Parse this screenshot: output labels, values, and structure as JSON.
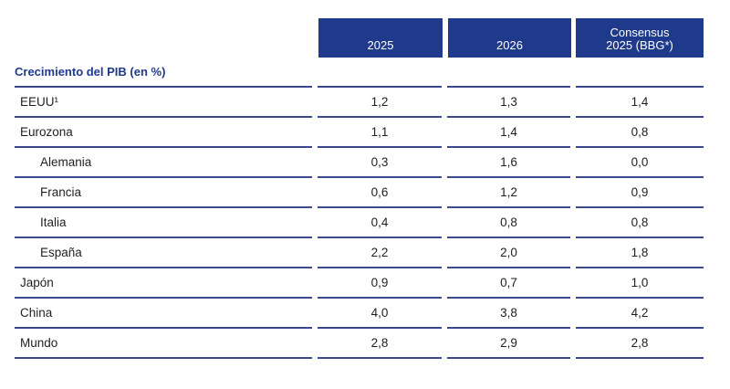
{
  "chart_data": {
    "type": "table",
    "title": "Crecimiento del PIB (en %)",
    "columns": [
      "2025",
      "2026",
      "Consensus\n2025 (BBG*)"
    ],
    "rows": [
      {
        "label": "EEUU¹",
        "indent": false,
        "values": [
          "1,2",
          "1,3",
          "1,4"
        ]
      },
      {
        "label": "Eurozona",
        "indent": false,
        "values": [
          "1,1",
          "1,4",
          "0,8"
        ]
      },
      {
        "label": "Alemania",
        "indent": true,
        "values": [
          "0,3",
          "1,6",
          "0,0"
        ]
      },
      {
        "label": "Francia",
        "indent": true,
        "values": [
          "0,6",
          "1,2",
          "0,9"
        ]
      },
      {
        "label": "Italia",
        "indent": true,
        "values": [
          "0,4",
          "0,8",
          "0,8"
        ]
      },
      {
        "label": "España",
        "indent": true,
        "values": [
          "2,2",
          "2,0",
          "1,8"
        ]
      },
      {
        "label": "Japón",
        "indent": false,
        "values": [
          "0,9",
          "0,7",
          "1,0"
        ]
      },
      {
        "label": "China",
        "indent": false,
        "values": [
          "4,0",
          "3,8",
          "4,2"
        ]
      },
      {
        "label": "Mundo",
        "indent": false,
        "values": [
          "2,8",
          "2,9",
          "2,8"
        ]
      }
    ]
  },
  "colors": {
    "header_bg": "#1f3a8a",
    "title_text": "#1f3a8a",
    "rule": "#3b4a8c"
  }
}
